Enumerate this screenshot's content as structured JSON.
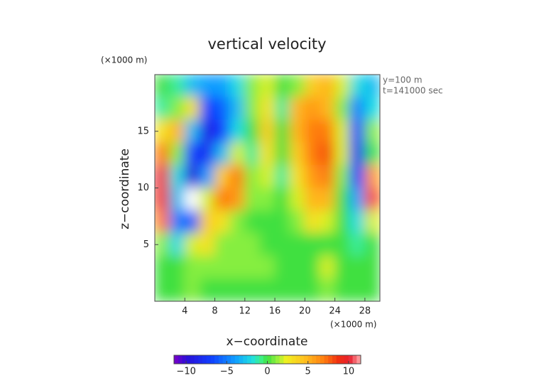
{
  "chart_data": {
    "type": "contour",
    "title": "vertical velocity",
    "x_label": "x−coordinate",
    "y_label": "z−coordinate",
    "x_unit": "(×1000 m)",
    "y_unit": "(×1000 m)",
    "annotations": [
      "y=100 m",
      "t=141000 sec"
    ],
    "x": [
      1,
      3,
      5,
      7,
      9,
      11,
      13,
      15,
      17,
      19,
      21,
      23,
      25,
      27,
      29
    ],
    "y": [
      19,
      17,
      15,
      13,
      11,
      9,
      7,
      5,
      3,
      1
    ],
    "z": [
      [
        0,
        -1,
        -3,
        -4,
        -4,
        -2,
        1,
        2,
        0,
        1,
        4,
        5,
        2,
        -2,
        -3
      ],
      [
        -1,
        1,
        3,
        -7,
        -6,
        -3,
        1,
        3,
        -1,
        5,
        6,
        5,
        1,
        -5,
        -2
      ],
      [
        3,
        5,
        -3,
        -9,
        -7,
        -2,
        0,
        4,
        0,
        5,
        7,
        7,
        2,
        -7,
        1
      ],
      [
        7,
        1,
        -7,
        -8,
        -3,
        2,
        -1,
        3,
        0,
        4,
        7,
        8,
        2,
        -8,
        0
      ],
      [
        10,
        -2,
        -10,
        -4,
        4,
        7,
        1,
        2,
        -1,
        3,
        6,
        7,
        1,
        -7,
        6
      ],
      [
        9,
        -3,
        -12,
        2,
        7,
        6,
        1,
        1,
        0,
        2,
        5,
        5,
        0,
        -4,
        8
      ],
      [
        7,
        -5,
        -6,
        4,
        3,
        1,
        0,
        0,
        0,
        1,
        3,
        2,
        0,
        -2,
        2
      ],
      [
        1,
        -2,
        2,
        3,
        1,
        1,
        1,
        0,
        0,
        0,
        0,
        0,
        0,
        -1,
        0
      ],
      [
        0,
        0,
        1,
        1,
        1,
        1,
        1,
        1,
        0,
        0,
        0,
        2,
        0,
        0,
        0
      ],
      [
        0,
        0,
        1,
        0,
        0,
        0,
        0,
        0,
        0,
        0,
        0,
        1,
        0,
        0,
        0
      ]
    ],
    "xlim": [
      0,
      30
    ],
    "ylim": [
      0,
      20
    ],
    "xticks": [
      4,
      8,
      12,
      16,
      20,
      24,
      28
    ],
    "yticks": [
      5,
      10,
      15
    ],
    "clim": [
      -11.5,
      11.5
    ],
    "cticks": [
      {
        "value": -10,
        "label": "−10"
      },
      {
        "value": -5,
        "label": "−5"
      },
      0,
      5,
      10
    ]
  }
}
